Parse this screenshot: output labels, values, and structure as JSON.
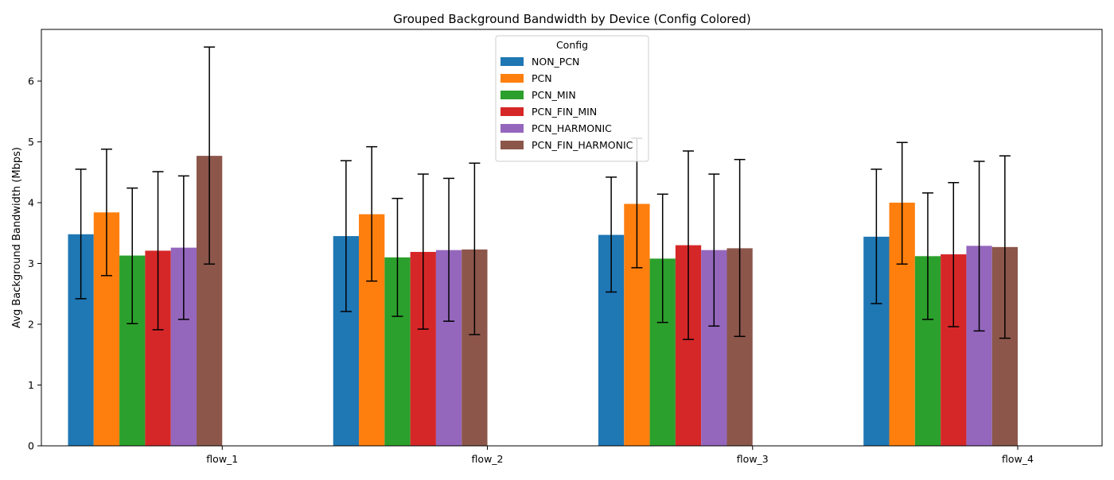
{
  "chart_data": {
    "type": "bar",
    "title": "Grouped Background Bandwidth by Device (Config Colored)",
    "xlabel": "",
    "ylabel": "Avg Background Bandwidth (Mbps)",
    "ylim": [
      0,
      6.85
    ],
    "yticks": [
      0,
      1,
      2,
      3,
      4,
      5,
      6
    ],
    "categories": [
      "flow_1",
      "flow_2",
      "flow_3",
      "flow_4"
    ],
    "grid": false,
    "legend": {
      "title": "Config",
      "placement": "top-center"
    },
    "series": [
      {
        "name": "NON_PCN",
        "color": "#1f77b4",
        "values": [
          3.48,
          3.45,
          3.47,
          3.44
        ],
        "errors": [
          [
            2.42,
            4.55
          ],
          [
            2.21,
            4.69
          ],
          [
            2.53,
            4.42
          ],
          [
            2.34,
            4.55
          ]
        ]
      },
      {
        "name": "PCN",
        "color": "#ff7f0e",
        "values": [
          3.84,
          3.81,
          3.98,
          4.0
        ],
        "errors": [
          [
            2.8,
            4.88
          ],
          [
            2.71,
            4.92
          ],
          [
            2.93,
            5.06
          ],
          [
            2.99,
            4.99
          ]
        ]
      },
      {
        "name": "PCN_MIN",
        "color": "#2ca02c",
        "values": [
          3.13,
          3.1,
          3.08,
          3.12
        ],
        "errors": [
          [
            2.01,
            4.24
          ],
          [
            2.13,
            4.07
          ],
          [
            2.03,
            4.14
          ],
          [
            2.08,
            4.16
          ]
        ]
      },
      {
        "name": "PCN_FIN_MIN",
        "color": "#d62728",
        "values": [
          3.21,
          3.19,
          3.3,
          3.15
        ],
        "errors": [
          [
            1.91,
            4.51
          ],
          [
            1.92,
            4.47
          ],
          [
            1.75,
            4.85
          ],
          [
            1.96,
            4.33
          ]
        ]
      },
      {
        "name": "PCN_HARMONIC",
        "color": "#9467bd",
        "values": [
          3.26,
          3.22,
          3.22,
          3.29
        ],
        "errors": [
          [
            2.08,
            4.44
          ],
          [
            2.05,
            4.4
          ],
          [
            1.97,
            4.47
          ],
          [
            1.89,
            4.68
          ]
        ]
      },
      {
        "name": "PCN_FIN_HARMONIC",
        "color": "#8c564b",
        "values": [
          4.77,
          3.23,
          3.25,
          3.27
        ],
        "errors": [
          [
            2.99,
            6.56
          ],
          [
            1.83,
            4.65
          ],
          [
            1.8,
            4.71
          ],
          [
            1.77,
            4.77
          ]
        ]
      }
    ]
  }
}
